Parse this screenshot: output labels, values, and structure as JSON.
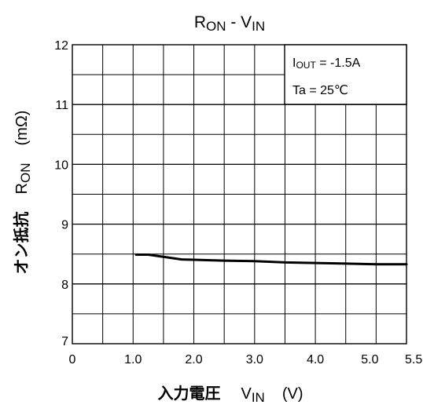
{
  "chart_data": {
    "type": "line",
    "title": {
      "main": "R",
      "main_sub": "ON",
      "sep": " - ",
      "second": "V",
      "second_sub": "IN"
    },
    "xlabel": {
      "jp": "入力電圧",
      "sym": "V",
      "sym_sub": "IN",
      "unit": "(V)"
    },
    "ylabel": {
      "jp": "オン抵抗",
      "sym": "R",
      "sym_sub": "ON",
      "unit": "(mΩ)"
    },
    "xlim": [
      0,
      5.5
    ],
    "ylim": [
      7,
      12
    ],
    "xticks": [
      "0",
      "1.0",
      "2.0",
      "3.0",
      "4.0",
      "5.0",
      "5.5"
    ],
    "yticks": [
      "7",
      "8",
      "9",
      "10",
      "11",
      "12"
    ],
    "grid": true,
    "annotation": {
      "line1_sym": "I",
      "line1_sub": "OUT",
      "line1_val": " = -1.5A",
      "line2": "Ta = 25℃"
    },
    "series": [
      {
        "color": "#000000",
        "x": [
          1.05,
          1.25,
          1.8,
          2.5,
          3.0,
          3.5,
          4.0,
          4.5,
          5.0,
          5.5
        ],
        "y": [
          8.49,
          8.49,
          8.41,
          8.39,
          8.38,
          8.36,
          8.35,
          8.34,
          8.33,
          8.33
        ]
      }
    ]
  }
}
